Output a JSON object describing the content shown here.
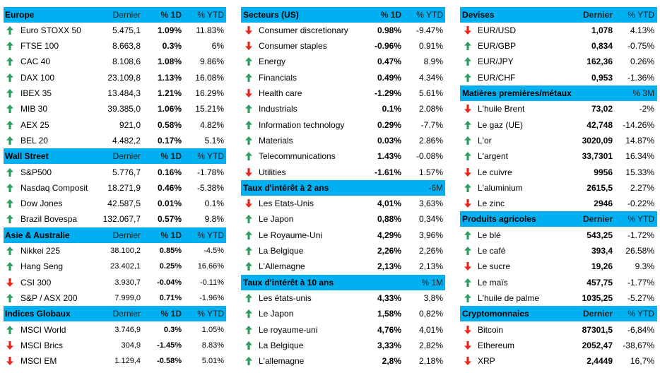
{
  "colors": {
    "header_bg": "#00B0F0",
    "arrow-up-icon": "#2E9D5E",
    "arrow-down-icon": "#E8261C"
  },
  "columns": [
    {
      "sections": [
        {
          "title": "Europe",
          "headers": [
            "Dernier",
            "% 1D",
            "% YTD"
          ],
          "rows": [
            {
              "icon": "arrow-up-icon",
              "name": "Euro STOXX 50",
              "values": [
                "5.475,1",
                "1.09%",
                "11.83%"
              ]
            },
            {
              "icon": "arrow-up-icon",
              "name": "FTSE 100",
              "values": [
                "8.663,8",
                "0.3%",
                "6%"
              ]
            },
            {
              "icon": "arrow-up-icon",
              "name": "CAC 40",
              "values": [
                "8.108,6",
                "1.08%",
                "9.86%"
              ]
            },
            {
              "icon": "arrow-up-icon",
              "name": "DAX 100",
              "values": [
                "23.109,8",
                "1.13%",
                "16.08%"
              ]
            },
            {
              "icon": "arrow-up-icon",
              "name": "IBEX 35",
              "values": [
                "13.484,3",
                "1.21%",
                "16.29%"
              ]
            },
            {
              "icon": "arrow-up-icon",
              "name": "MIB 30",
              "values": [
                "39.385,0",
                "1.06%",
                "15.21%"
              ]
            },
            {
              "icon": "arrow-up-icon",
              "name": "AEX 25",
              "values": [
                "921,0",
                "0.58%",
                "4.82%"
              ]
            },
            {
              "icon": "arrow-up-icon",
              "name": "BEL 20",
              "values": [
                "4.482,2",
                "0.17%",
                "5.1%"
              ]
            }
          ]
        },
        {
          "title": "Wall Street",
          "headers": [
            "Dernier",
            "% 1D",
            "% YTD"
          ],
          "rows": [
            {
              "icon": "arrow-up-icon",
              "name": "S&P500",
              "values": [
                "5.776,7",
                "0.16%",
                "-1.78%"
              ]
            },
            {
              "icon": "arrow-up-icon",
              "name": "Nasdaq Composit",
              "values": [
                "18.271,9",
                "0.46%",
                "-5.38%"
              ]
            },
            {
              "icon": "arrow-up-icon",
              "name": "Dow Jones",
              "values": [
                "42.587,5",
                "0.01%",
                "0.1%"
              ]
            },
            {
              "icon": "arrow-up-icon",
              "name": "Brazil Bovespa",
              "values": [
                "132.067,7",
                "0.57%",
                "9.8%"
              ]
            }
          ]
        },
        {
          "title": "Asie & Australie",
          "headers": [
            "Dernier",
            "% 1D",
            "% YTD"
          ],
          "rows": [
            {
              "icon": "arrow-up-icon",
              "name": "Nikkei 225",
              "values": [
                "38.100,2",
                "0.85%",
                "-4.5%"
              ]
            },
            {
              "icon": "arrow-up-icon",
              "name": "Hang Seng",
              "values": [
                "23.402,1",
                "0.25%",
                "16.66%"
              ]
            },
            {
              "icon": "arrow-down-icon",
              "name": "CSI 300",
              "values": [
                "3.930,7",
                "-0.04%",
                "-0.11%"
              ]
            },
            {
              "icon": "arrow-up-icon",
              "name": "S&P / ASX 200",
              "values": [
                "7.999,0",
                "0.71%",
                "-1.96%"
              ]
            }
          ]
        },
        {
          "title": "Indices Globaux",
          "headers": [
            "Dernier",
            "% 1D",
            "% YTD"
          ],
          "rows": [
            {
              "icon": "arrow-up-icon",
              "name": "MSCI World",
              "values": [
                "3.746,9",
                "0.3%",
                "1.05%"
              ]
            },
            {
              "icon": "arrow-down-icon",
              "name": "MSCI Brics",
              "values": [
                "304,9",
                "-1.45%",
                "8.83%"
              ]
            },
            {
              "icon": "arrow-down-icon",
              "name": "MSCI EM",
              "values": [
                "1.129,4",
                "-0.58%",
                "5.01%"
              ]
            }
          ]
        }
      ]
    },
    {
      "sections": [
        {
          "title": "Secteurs (US)",
          "headers": [
            "% 1D",
            "% YTD"
          ],
          "rows": [
            {
              "icon": "arrow-down-icon",
              "name": "Consumer discretionary",
              "values": [
                "0.98%",
                "-9.47%"
              ]
            },
            {
              "icon": "arrow-down-icon",
              "name": "Consumer staples",
              "values": [
                "-0.96%",
                "0.91%"
              ]
            },
            {
              "icon": "arrow-up-icon",
              "name": "Energy",
              "values": [
                "0.47%",
                "8.9%"
              ]
            },
            {
              "icon": "arrow-up-icon",
              "name": "Financials",
              "values": [
                "0.49%",
                "4.34%"
              ]
            },
            {
              "icon": "arrow-down-icon",
              "name": "Health care",
              "values": [
                "-1.29%",
                "5.61%"
              ]
            },
            {
              "icon": "arrow-up-icon",
              "name": "Industrials",
              "values": [
                "0.1%",
                "2.08%"
              ]
            },
            {
              "icon": "arrow-up-icon",
              "name": "Information technology",
              "values": [
                "0.29%",
                "-7.7%"
              ]
            },
            {
              "icon": "arrow-up-icon",
              "name": "Materials",
              "values": [
                "0.03%",
                "2.86%"
              ]
            },
            {
              "icon": "arrow-up-icon",
              "name": "Telecommunications",
              "values": [
                "1.43%",
                "-0.08%"
              ]
            },
            {
              "icon": "arrow-down-icon",
              "name": "Utilities",
              "values": [
                "-1.61%",
                "1.57%"
              ]
            }
          ]
        },
        {
          "title": "Taux d'intérêt à 2 ans",
          "headers": [
            "",
            "-6M"
          ],
          "rows": [
            {
              "icon": "arrow-down-icon",
              "name": "Les Etats-Unis",
              "values": [
                "4,01%",
                "3,63%"
              ]
            },
            {
              "icon": "arrow-up-icon",
              "name": "Le Japon",
              "values": [
                "0,88%",
                "0,34%"
              ]
            },
            {
              "icon": "arrow-up-icon",
              "name": "Le Royaume-Uni",
              "values": [
                "4,29%",
                "3,96%"
              ]
            },
            {
              "icon": "arrow-up-icon",
              "name": "La Belgique",
              "values": [
                "2,26%",
                "2,26%"
              ]
            },
            {
              "icon": "arrow-up-icon",
              "name": "L'Allemagne",
              "values": [
                "2,13%",
                "2,13%"
              ]
            }
          ]
        },
        {
          "title": "Taux d'intérêt à 10 ans",
          "headers": [
            "",
            "% 1M"
          ],
          "rows": [
            {
              "icon": "arrow-up-icon",
              "name": "Les états-unis",
              "values": [
                "4,33%",
                "3,8%"
              ]
            },
            {
              "icon": "arrow-up-icon",
              "name": "Le Japon",
              "values": [
                "1,58%",
                "0,82%"
              ]
            },
            {
              "icon": "arrow-up-icon",
              "name": "Le royaume-uni",
              "values": [
                "4,76%",
                "4,01%"
              ]
            },
            {
              "icon": "arrow-up-icon",
              "name": "La Belgique",
              "values": [
                "3,33%",
                "2,82%"
              ]
            },
            {
              "icon": "arrow-up-icon",
              "name": "L'allemagne",
              "values": [
                "2,8%",
                "2,18%"
              ]
            }
          ]
        }
      ]
    },
    {
      "sections": [
        {
          "title": "Devises",
          "headers": [
            "Dernier",
            "% YTD"
          ],
          "rows": [
            {
              "icon": "arrow-down-icon",
              "name": "EUR/USD",
              "values": [
                "1,078",
                "4.13%"
              ]
            },
            {
              "icon": "arrow-up-icon",
              "name": "EUR/GBP",
              "values": [
                "0,834",
                "-0.75%"
              ]
            },
            {
              "icon": "arrow-up-icon",
              "name": "EUR/JPY",
              "values": [
                "162,36",
                "0.26%"
              ]
            },
            {
              "icon": "arrow-up-icon",
              "name": "EUR/CHF",
              "values": [
                "0,953",
                "-1.36%"
              ]
            }
          ]
        },
        {
          "title": "Matières premières/métaux",
          "headers": [
            "",
            "% 3M"
          ],
          "rows": [
            {
              "icon": "arrow-down-icon",
              "name": "L'huile Brent",
              "values": [
                "73,02",
                "-2%"
              ]
            },
            {
              "icon": "arrow-up-icon",
              "name": "Le gaz (UE)",
              "values": [
                "42,748",
                "-14.26%"
              ]
            },
            {
              "icon": "arrow-up-icon",
              "name": "L'or",
              "values": [
                "3020,09",
                "14.87%"
              ]
            },
            {
              "icon": "arrow-up-icon",
              "name": "L'argent",
              "values": [
                "33,7301",
                "16.34%"
              ]
            },
            {
              "icon": "arrow-down-icon",
              "name": "Le cuivre",
              "values": [
                "9956",
                "15.33%"
              ]
            },
            {
              "icon": "arrow-up-icon",
              "name": "L'aluminium",
              "values": [
                "2615,5",
                "2.27%"
              ]
            },
            {
              "icon": "arrow-down-icon",
              "name": "Le zinc",
              "values": [
                "2946",
                "-0.22%"
              ]
            }
          ]
        },
        {
          "title": "Produits agricoles",
          "headers": [
            "Dernier",
            "% YTD"
          ],
          "rows": [
            {
              "icon": "arrow-up-icon",
              "name": "Le blé",
              "values": [
                "543,25",
                "-1.72%"
              ]
            },
            {
              "icon": "arrow-up-icon",
              "name": "Le café",
              "values": [
                "393,4",
                "26.58%"
              ]
            },
            {
              "icon": "arrow-down-icon",
              "name": "Le sucre",
              "values": [
                "19,26",
                "9.3%"
              ]
            },
            {
              "icon": "arrow-up-icon",
              "name": "Le maïs",
              "values": [
                "457,75",
                "-1.77%"
              ]
            },
            {
              "icon": "arrow-up-icon",
              "name": "L'huile de palme",
              "values": [
                "1035,25",
                "-5.27%"
              ]
            }
          ]
        },
        {
          "title": "Cryptomonnaies",
          "headers": [
            "Dernier",
            "% YTD"
          ],
          "rows": [
            {
              "icon": "arrow-down-icon",
              "name": "Bitcoin",
              "values": [
                "87301,5",
                "-6,84%"
              ]
            },
            {
              "icon": "arrow-down-icon",
              "name": "Ethereum",
              "values": [
                "2052,47",
                "-38,67%"
              ]
            },
            {
              "icon": "arrow-down-icon",
              "name": "XRP",
              "values": [
                "2,4449",
                "16,7%"
              ]
            }
          ]
        }
      ]
    }
  ]
}
